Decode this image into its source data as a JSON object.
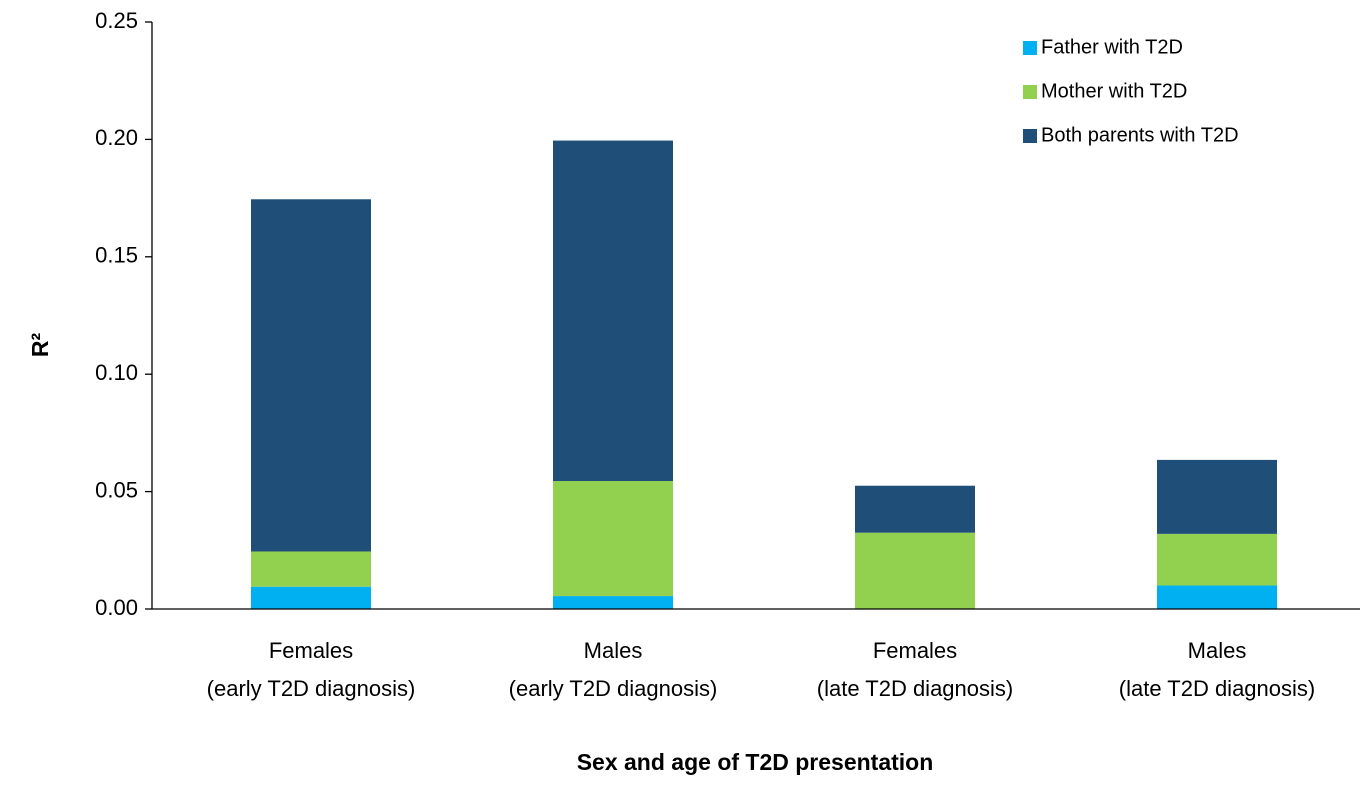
{
  "chart_data": {
    "type": "stacked_bar",
    "x_label": "Sex and age of T2D presentation",
    "y_label": "R²",
    "categories": [
      [
        "Females",
        "(early T2D diagnosis)"
      ],
      [
        "Males",
        "(early T2D diagnosis)"
      ],
      [
        "Females",
        "(late T2D diagnosis)"
      ],
      [
        "Males",
        "(late T2D diagnosis)"
      ]
    ],
    "series": [
      {
        "name": "Father with T2D",
        "color": "#00b0f0",
        "values": [
          0.0095,
          0.0055,
          0,
          0.01
        ]
      },
      {
        "name": "Mother with T2D",
        "color": "#92d050",
        "values": [
          0.015,
          0.049,
          0.0325,
          0.022
        ]
      },
      {
        "name": "Both parents with T2D",
        "color": "#1f4e79",
        "values": [
          0.15,
          0.145,
          0.02,
          0.0315
        ]
      }
    ],
    "ylim": [
      0,
      0.25
    ],
    "yticks": [
      {
        "value": 0,
        "label": "0.00"
      },
      {
        "value": 0.05,
        "label": "0.05"
      },
      {
        "value": 0.1,
        "label": "0.10"
      },
      0.15,
      {
        "value": 0.2,
        "label": "0.20"
      },
      0.25
    ],
    "grid": false,
    "legend": "upper right"
  }
}
